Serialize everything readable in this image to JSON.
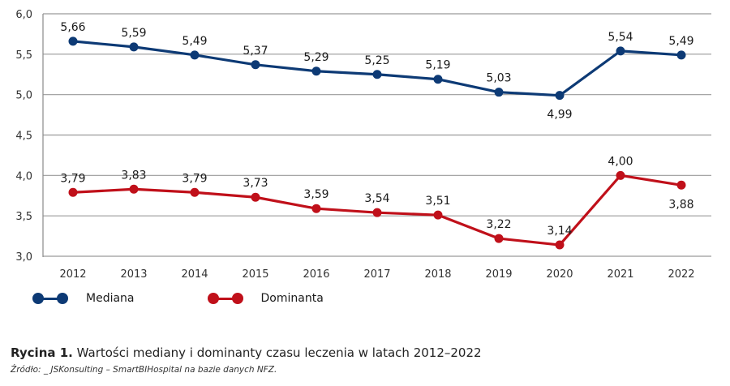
{
  "chart_data": {
    "type": "line",
    "title": "",
    "xlabel": "",
    "ylabel": "",
    "x": [
      "2012",
      "2013",
      "2014",
      "2015",
      "2016",
      "2017",
      "2018",
      "2019",
      "2020",
      "2021",
      "2022"
    ],
    "ylim": [
      3.0,
      6.0
    ],
    "yticks": [
      "3,0",
      "3,5",
      "4,0",
      "4,5",
      "5,0",
      "5,5",
      "6,0"
    ],
    "ytick_values": [
      3.0,
      3.5,
      4.0,
      4.5,
      5.0,
      5.5,
      6.0
    ],
    "grid": true,
    "legend_position": "bottom-left",
    "series": [
      {
        "name": "Mediana",
        "color": "#0d3a75",
        "values": [
          5.66,
          5.59,
          5.49,
          5.37,
          5.29,
          5.25,
          5.19,
          5.03,
          4.99,
          5.54,
          5.49
        ],
        "labels": [
          "5,66",
          "5,59",
          "5,49",
          "5,37",
          "5,29",
          "5,25",
          "5,19",
          "5,03",
          "4,99",
          "5,54",
          "5,49"
        ],
        "label_side": [
          "above",
          "above",
          "above",
          "above",
          "above",
          "above",
          "above",
          "above",
          "below",
          "above",
          "above"
        ]
      },
      {
        "name": "Dominanta",
        "color": "#c0101a",
        "values": [
          3.79,
          3.83,
          3.79,
          3.73,
          3.59,
          3.54,
          3.51,
          3.22,
          3.14,
          4.0,
          3.88
        ],
        "labels": [
          "3,79",
          "3,83",
          "3,79",
          "3,73",
          "3,59",
          "3,54",
          "3,51",
          "3,22",
          "3,14",
          "4,00",
          "3,88"
        ],
        "label_side": [
          "above",
          "above",
          "above",
          "above",
          "above",
          "above",
          "above",
          "above",
          "above",
          "above",
          "below"
        ]
      }
    ]
  },
  "legend": {
    "items": [
      {
        "label": "Mediana",
        "color": "#0d3a75"
      },
      {
        "label": "Dominanta",
        "color": "#c0101a"
      }
    ]
  },
  "caption": {
    "prefix": "Rycina 1.",
    "text": " Wartości mediany i dominanty czasu leczenia w latach 2012–2022"
  },
  "source": "Źródło: _ JSKonsulting – SmartBIHospital na bazie danych NFZ."
}
